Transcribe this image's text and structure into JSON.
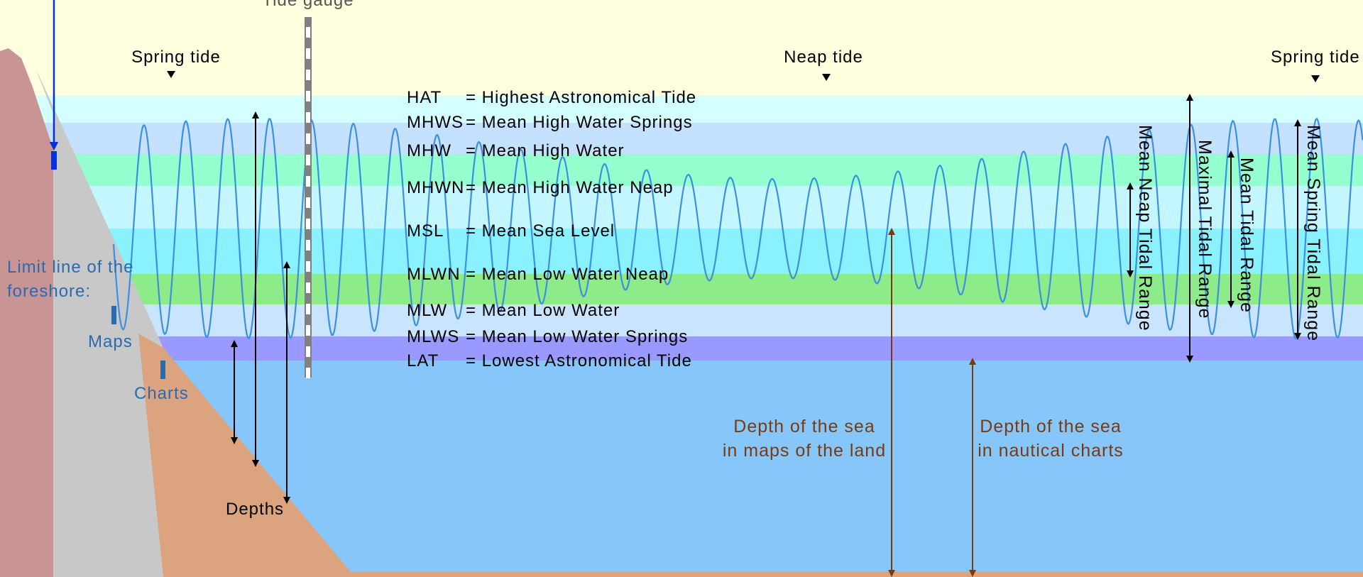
{
  "colors": {
    "sky": "#FFFFE0",
    "hat_band": "#D4FFFF",
    "mhws_band": "#C4E2FF",
    "mhw_band": "#96FFD0",
    "mhwn_band": "#C4F6FF",
    "msl_band": "#8AF2FF",
    "mlwn_band": "#8EEB8A",
    "mlw_band": "#C8E4FF",
    "lat_band": "#9999FF",
    "sea": "#86C6FA",
    "cliff": "#C89494",
    "foreshore": "#C8C8C8",
    "sand": "#DCA47E",
    "tide_curve": "#3D8FE0",
    "brown_arrow": "#7A3A10",
    "blue_marker": "#0033DD"
  },
  "labels": {
    "tide_gauge": "Tide gauge",
    "spring_tide_left": "Spring tide",
    "neap_tide": "Neap tide",
    "spring_tide_right": "Spring tide",
    "limit_line_1": "Limit line of the",
    "limit_line_2": "foreshore:",
    "maps": "Maps",
    "charts": "Charts",
    "depths": "Depths",
    "depth_maps_1": "Depth of the sea",
    "depth_maps_2": "in maps of the land",
    "depth_charts_1": "Depth of the sea",
    "depth_charts_2": "in nautical charts",
    "mean_neap_range": "Mean Neap Tidal Range",
    "maximal_range": "Maximal Tidal Range",
    "mean_range": "Mean Tidal Range",
    "mean_spring_range": "Mean Spring Tidal Range"
  },
  "legend": [
    {
      "abbr": "HAT",
      "text": "= Highest Astronomical Tide"
    },
    {
      "abbr": "MHWS",
      "text": "= Mean High Water Springs"
    },
    {
      "abbr": "MHW",
      "text": "= Mean High Water"
    },
    {
      "abbr": "MHWN",
      "text": "= Mean High Water Neap"
    },
    {
      "abbr": "MSL",
      "text": "= Mean Sea Level"
    },
    {
      "abbr": "MLWN",
      "text": "= Mean Low Water Neap"
    },
    {
      "abbr": "MLW",
      "text": "= Mean Low Water"
    },
    {
      "abbr": "MLWS",
      "text": "= Mean Low Water Springs"
    },
    {
      "abbr": "LAT",
      "text": "= Lowest Astronomical Tide"
    }
  ]
}
